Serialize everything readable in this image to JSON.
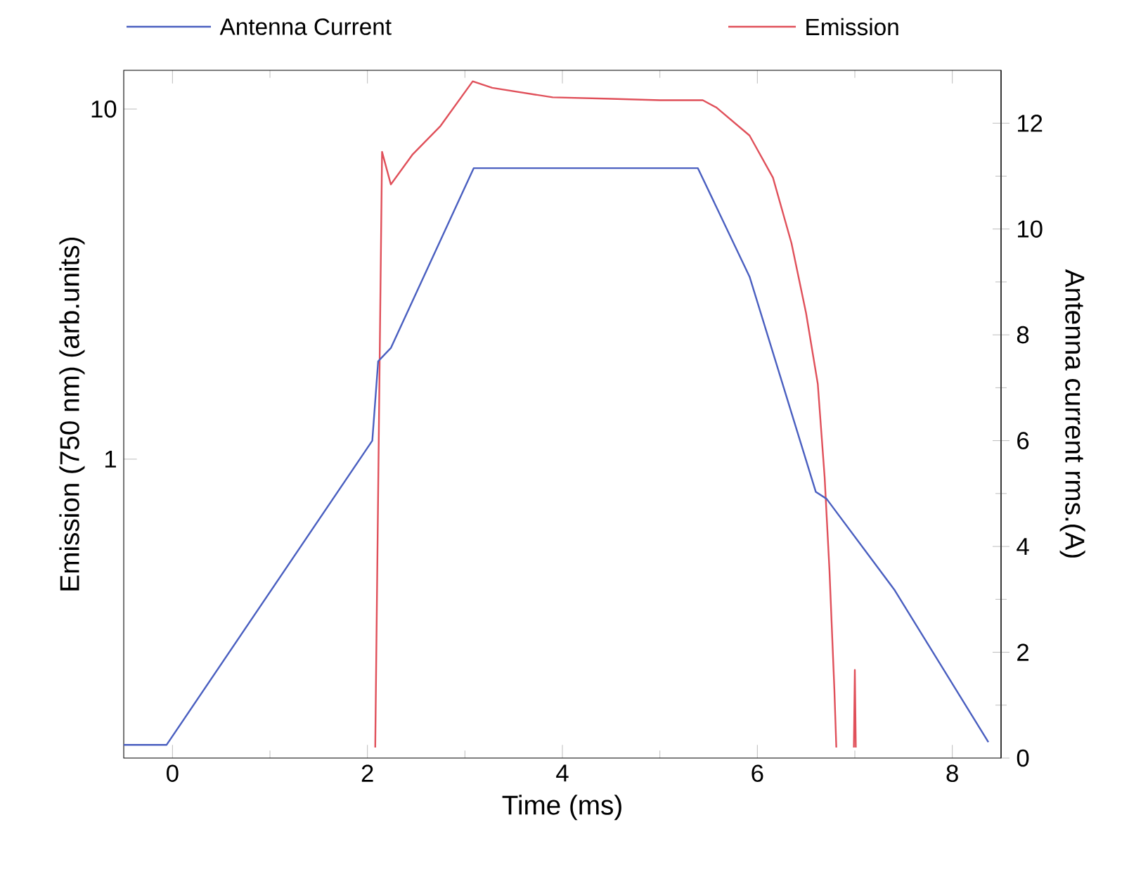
{
  "chart_data": {
    "type": "line",
    "xlabel": "Time (ms)",
    "ylabel": "Emission (750 nm) (arb.units)",
    "y2label": "Antenna current  rms.(A)",
    "xlim": [
      -0.5,
      8.5
    ],
    "xticks": [
      0,
      2,
      4,
      6,
      8
    ],
    "ylim": [
      0.14,
      12.9
    ],
    "yticks": [
      1,
      10
    ],
    "y2lim": [
      0,
      13
    ],
    "y2ticks": [
      0,
      2,
      4,
      6,
      8,
      10,
      12
    ],
    "log": "y",
    "legend": "top",
    "grid": false,
    "series": [
      {
        "name": "Antenna Current",
        "color": "#4a5fc0",
        "axis": "y2",
        "x": [
          -0.5,
          -0.06,
          2.05,
          2.11,
          2.24,
          3.09,
          5.39,
          5.92,
          6.6,
          6.71,
          7.41,
          8.37
        ],
        "values": [
          0.25,
          0.25,
          6.0,
          7.5,
          7.75,
          11.15,
          11.15,
          9.1,
          5.03,
          4.9,
          3.17,
          0.3
        ]
      },
      {
        "name": "Emission",
        "color": "#e0505a",
        "x": [
          2.08,
          2.15,
          2.24,
          2.46,
          2.75,
          3.08,
          3.28,
          3.9,
          4.5,
          5.0,
          5.44,
          5.58,
          5.92,
          6.16,
          6.35,
          6.5,
          6.62,
          6.69,
          6.74,
          6.79,
          6.81,
          6.9,
          6.99,
          7.0,
          7.01
        ],
        "values": [
          0.15,
          7.55,
          6.09,
          7.4,
          8.95,
          12.0,
          11.5,
          10.8,
          10.7,
          10.6,
          10.6,
          10.1,
          8.4,
          6.37,
          4.14,
          2.61,
          1.64,
          0.89,
          0.48,
          0.22,
          0.15,
          null,
          0.15,
          0.25,
          0.15
        ]
      }
    ]
  }
}
